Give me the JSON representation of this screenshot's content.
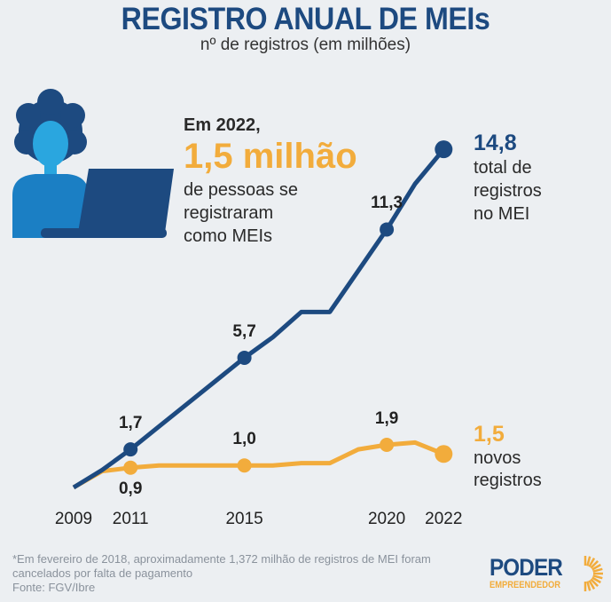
{
  "header": {
    "title": "REGISTRO ANUAL DE MEIs",
    "subtitle": "nº de registros (em milhões)"
  },
  "annotation": {
    "lead": "Em 2022,",
    "highlight": "1,5 milhão",
    "lines": [
      "de pessoas se",
      "registraram",
      "como MEIs"
    ]
  },
  "right_labels": {
    "total": {
      "value": "14,8",
      "lines": [
        "total de",
        "registros",
        "no MEI"
      ]
    },
    "novos": {
      "value": "1,5",
      "lines": [
        "novos",
        "registros"
      ]
    }
  },
  "colors": {
    "total": "#1d4a80",
    "novos": "#f2ac3c",
    "background": "#eceff2"
  },
  "chart_data": {
    "type": "line",
    "title": "REGISTRO ANUAL DE MEIs",
    "subtitle": "nº de registros (em milhões)",
    "x": [
      2009,
      2010,
      2011,
      2012,
      2013,
      2014,
      2015,
      2016,
      2017,
      2018,
      2019,
      2020,
      2021,
      2022
    ],
    "x_tick_labels": [
      "2009",
      "2011",
      "2015",
      "2020",
      "2022"
    ],
    "series": [
      {
        "name": "total de registros no MEI",
        "values": [
          0.04,
          0.8,
          1.7,
          2.7,
          3.7,
          4.7,
          5.7,
          6.6,
          7.7,
          7.7,
          9.5,
          11.3,
          13.3,
          14.8
        ],
        "labels": [
          {
            "x": 2011,
            "text": "1,7"
          },
          {
            "x": 2015,
            "text": "5,7"
          },
          {
            "x": 2020,
            "text": "11,3"
          }
        ]
      },
      {
        "name": "novos registros",
        "values": [
          0.04,
          0.75,
          0.9,
          1.0,
          1.0,
          1.0,
          1.0,
          1.0,
          1.1,
          1.1,
          1.7,
          1.9,
          2.0,
          1.5
        ],
        "labels": [
          {
            "x": 2011,
            "text": "0,9"
          },
          {
            "x": 2015,
            "text": "1,0"
          },
          {
            "x": 2020,
            "text": "1,9"
          }
        ]
      }
    ],
    "ylim": [
      0,
      15
    ],
    "grid": false,
    "legend": "right (inline labels)"
  },
  "footer": {
    "note": "*Em fevereiro de 2018, aproximadamente 1,372 milhão de registros de MEI foram",
    "note2": "cancelados por falta de pagamento",
    "source": "Fonte: FGV/Ibre"
  },
  "logo": {
    "brand": "PODER",
    "sub": "EMPREENDEDOR"
  }
}
